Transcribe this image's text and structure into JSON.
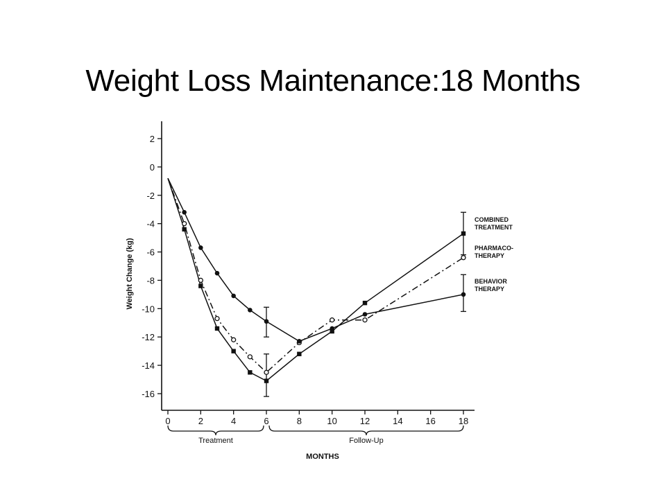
{
  "slide": {
    "title": "Weight Loss Maintenance:18 Months"
  },
  "chart_data": {
    "type": "line",
    "xlabel": "MONTHS",
    "ylabel": "Weight Change (kg)",
    "xlim": [
      0,
      18
    ],
    "ylim": [
      -17,
      3
    ],
    "x_ticks": [
      0,
      2,
      4,
      6,
      8,
      10,
      12,
      14,
      16,
      18
    ],
    "y_ticks": [
      2,
      0,
      -2,
      -4,
      -6,
      -8,
      -10,
      -12,
      -14,
      -16
    ],
    "grid": false,
    "legend_position": "right",
    "phases": [
      {
        "label": "Treatment",
        "from": 0,
        "to": 6
      },
      {
        "label": "Follow-Up",
        "from": 6,
        "to": 18
      }
    ],
    "series": [
      {
        "name": "COMBINED TREATMENT",
        "marker": "filled-square",
        "dash": "solid",
        "x": [
          0,
          1,
          2,
          3,
          4,
          5,
          6,
          8,
          10,
          12,
          18
        ],
        "y": [
          -0.8,
          -4.4,
          -8.4,
          -11.4,
          -13.0,
          -14.5,
          -15.1,
          -13.2,
          -11.6,
          -9.6,
          -4.7
        ],
        "error_bars": [
          {
            "x": 18,
            "low": -6.2,
            "high": -3.2
          }
        ]
      },
      {
        "name": "PHARMACO-THERAPY",
        "marker": "open-circle",
        "dash": "dashed",
        "x": [
          0,
          1,
          2,
          3,
          4,
          5,
          6,
          8,
          10,
          12,
          18
        ],
        "y": [
          -0.8,
          -4.0,
          -8.0,
          -10.7,
          -12.2,
          -13.4,
          -14.5,
          -12.4,
          -10.8,
          -10.8,
          -6.4
        ],
        "error_bars": [
          {
            "x": 6,
            "low": -16.2,
            "high": -13.2
          }
        ]
      },
      {
        "name": "BEHAVIOR THERAPY",
        "marker": "filled-circle",
        "dash": "solid",
        "x": [
          0,
          1,
          2,
          3,
          4,
          5,
          6,
          8,
          10,
          12,
          18
        ],
        "y": [
          -0.8,
          -3.2,
          -5.7,
          -7.5,
          -9.1,
          -10.1,
          -10.9,
          -12.3,
          -11.4,
          -10.4,
          -9.0
        ],
        "error_bars": [
          {
            "x": 6,
            "low": -12.0,
            "high": -9.9
          },
          {
            "x": 18,
            "low": -10.2,
            "high": -7.6
          }
        ]
      }
    ]
  }
}
